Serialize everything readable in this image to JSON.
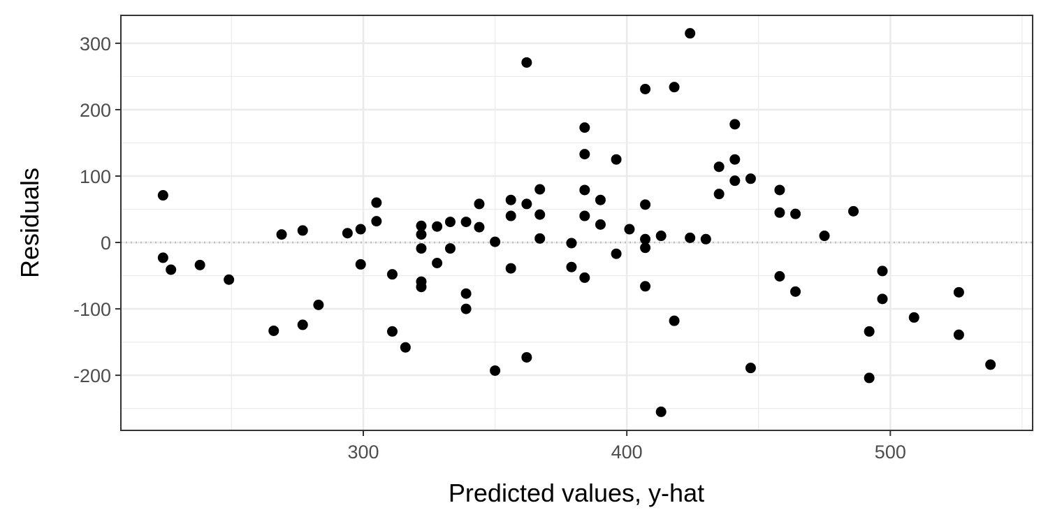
{
  "chart_data": {
    "type": "scatter",
    "title": "",
    "xlabel": "Predicted values, y-hat",
    "ylabel": "Residuals",
    "xlim": [
      208,
      554
    ],
    "ylim": [
      -283,
      342
    ],
    "x_ticks": [
      300,
      400,
      500
    ],
    "x_minor_ticks": [
      250,
      350,
      450,
      550
    ],
    "y_ticks": [
      -200,
      -100,
      0,
      100,
      200,
      300
    ],
    "y_minor_ticks": [
      -250,
      -150,
      -50,
      50,
      150,
      250
    ],
    "x_tick_labels": [
      "300",
      "400",
      "500"
    ],
    "y_tick_labels": [
      "-200",
      "-100",
      "0",
      "100",
      "200",
      "300"
    ],
    "reference_line": {
      "y": 0,
      "style": "dotted"
    },
    "grid": true,
    "colors": {
      "point": "#000000",
      "grid": "#ebebeb",
      "panel_border": "#333333",
      "reference": "#bebebe"
    },
    "points": [
      [
        224,
        71
      ],
      [
        224,
        -23
      ],
      [
        227,
        -41
      ],
      [
        238,
        -34
      ],
      [
        249,
        -56
      ],
      [
        266,
        -133
      ],
      [
        269,
        12
      ],
      [
        277,
        18
      ],
      [
        277,
        -124
      ],
      [
        283,
        -94
      ],
      [
        294,
        14
      ],
      [
        299,
        20
      ],
      [
        299,
        -33
      ],
      [
        305,
        60
      ],
      [
        305,
        32
      ],
      [
        311,
        -48
      ],
      [
        311,
        -134
      ],
      [
        316,
        -158
      ],
      [
        322,
        25
      ],
      [
        322,
        12
      ],
      [
        322,
        -9
      ],
      [
        322,
        -59
      ],
      [
        322,
        -67
      ],
      [
        328,
        24
      ],
      [
        328,
        -31
      ],
      [
        333,
        31
      ],
      [
        333,
        -9
      ],
      [
        339,
        31
      ],
      [
        339,
        -77
      ],
      [
        339,
        -100
      ],
      [
        344,
        58
      ],
      [
        344,
        23
      ],
      [
        350,
        1
      ],
      [
        350,
        -193
      ],
      [
        356,
        64
      ],
      [
        356,
        40
      ],
      [
        356,
        -39
      ],
      [
        362,
        271
      ],
      [
        362,
        58
      ],
      [
        362,
        -173
      ],
      [
        367,
        80
      ],
      [
        367,
        42
      ],
      [
        367,
        6
      ],
      [
        379,
        -1
      ],
      [
        379,
        -37
      ],
      [
        384,
        173
      ],
      [
        384,
        133
      ],
      [
        384,
        79
      ],
      [
        384,
        40
      ],
      [
        384,
        -53
      ],
      [
        390,
        64
      ],
      [
        390,
        27
      ],
      [
        396,
        125
      ],
      [
        396,
        -17
      ],
      [
        401,
        20
      ],
      [
        407,
        231
      ],
      [
        407,
        57
      ],
      [
        407,
        5
      ],
      [
        407,
        -8
      ],
      [
        407,
        -66
      ],
      [
        413,
        10
      ],
      [
        413,
        -255
      ],
      [
        418,
        234
      ],
      [
        418,
        -118
      ],
      [
        424,
        315
      ],
      [
        424,
        7
      ],
      [
        430,
        5
      ],
      [
        435,
        114
      ],
      [
        435,
        73
      ],
      [
        441,
        178
      ],
      [
        441,
        125
      ],
      [
        441,
        93
      ],
      [
        447,
        96
      ],
      [
        447,
        -189
      ],
      [
        458,
        79
      ],
      [
        458,
        45
      ],
      [
        458,
        -51
      ],
      [
        464,
        43
      ],
      [
        464,
        -74
      ],
      [
        475,
        10
      ],
      [
        486,
        47
      ],
      [
        492,
        -134
      ],
      [
        492,
        -204
      ],
      [
        497,
        -43
      ],
      [
        497,
        -85
      ],
      [
        509,
        -113
      ],
      [
        526,
        -75
      ],
      [
        526,
        -139
      ],
      [
        538,
        -184
      ]
    ]
  }
}
